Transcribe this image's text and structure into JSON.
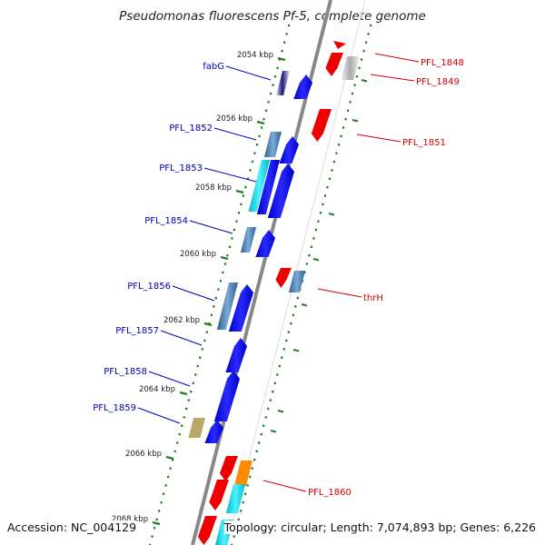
{
  "title": "Pseudomonas fluorescens Pf-5, complete genome",
  "footer": {
    "accession": "Accession: NC_004129",
    "summary": "Topology: circular; Length: 7,074,893 bp; Genes: 6,226"
  },
  "scale_unit": "kbp",
  "ticks": [
    "2054 kbp",
    "2056 kbp",
    "2058 kbp",
    "2060 kbp",
    "2062 kbp",
    "2064 kbp",
    "2066 kbp",
    "2068 kbp"
  ],
  "colors": {
    "backbone": "#888888",
    "forward_label": "#0000b4",
    "reverse_label": "#d40000",
    "gene_blue": "#0000ee",
    "gene_red": "#ee0000",
    "gene_cyan": "#00cccc",
    "gene_orange": "#ff8c00",
    "gene_khaki": "#b8a968",
    "gene_gray": "#bbbbbb",
    "gene_steel": "#4682b4",
    "tick_green": "#2a7a2a"
  },
  "forward_labels": [
    "fabG",
    "PFL_1852",
    "PFL_1853",
    "PFL_1854",
    "PFL_1856",
    "PFL_1857",
    "PFL_1858",
    "PFL_1859"
  ],
  "reverse_labels": [
    "PFL_1848",
    "PFL_1849",
    "PFL_1851",
    "thrH",
    "PFL_1860"
  ]
}
